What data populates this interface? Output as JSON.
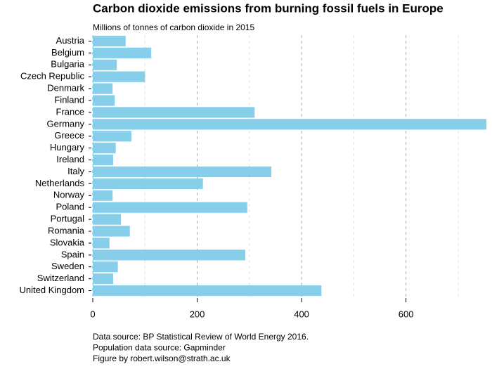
{
  "chart_data": {
    "type": "barh",
    "title": "Carbon dioxide emissions from burning fossil fuels in Europe",
    "subtitle": "Millions of tonnes of carbon dioxide in 2015",
    "categories": [
      "Austria",
      "Belgium",
      "Bulgaria",
      "Czech Republic",
      "Denmark",
      "Finland",
      "France",
      "Germany",
      "Greece",
      "Hungary",
      "Ireland",
      "Italy",
      "Netherlands",
      "Norway",
      "Poland",
      "Portugal",
      "Romania",
      "Slovakia",
      "Spain",
      "Sweden",
      "Switzerland",
      "United Kingdom"
    ],
    "values": [
      63,
      112,
      46,
      100,
      38,
      42,
      310,
      754,
      74,
      44,
      39,
      342,
      211,
      38,
      296,
      54,
      71,
      32,
      292,
      48,
      39,
      438
    ],
    "color": "#87ceeb",
    "xlim": [
      0,
      754
    ],
    "xticks": [
      0,
      200,
      400,
      600
    ],
    "minor_xticks": [
      100,
      300,
      500,
      700
    ],
    "grid": true,
    "notes": [
      "Data source: BP Statistical Review of World Energy 2016.",
      "Population data source: Gapminder",
      "Figure by robert.wilson@strath.ac.uk"
    ]
  }
}
